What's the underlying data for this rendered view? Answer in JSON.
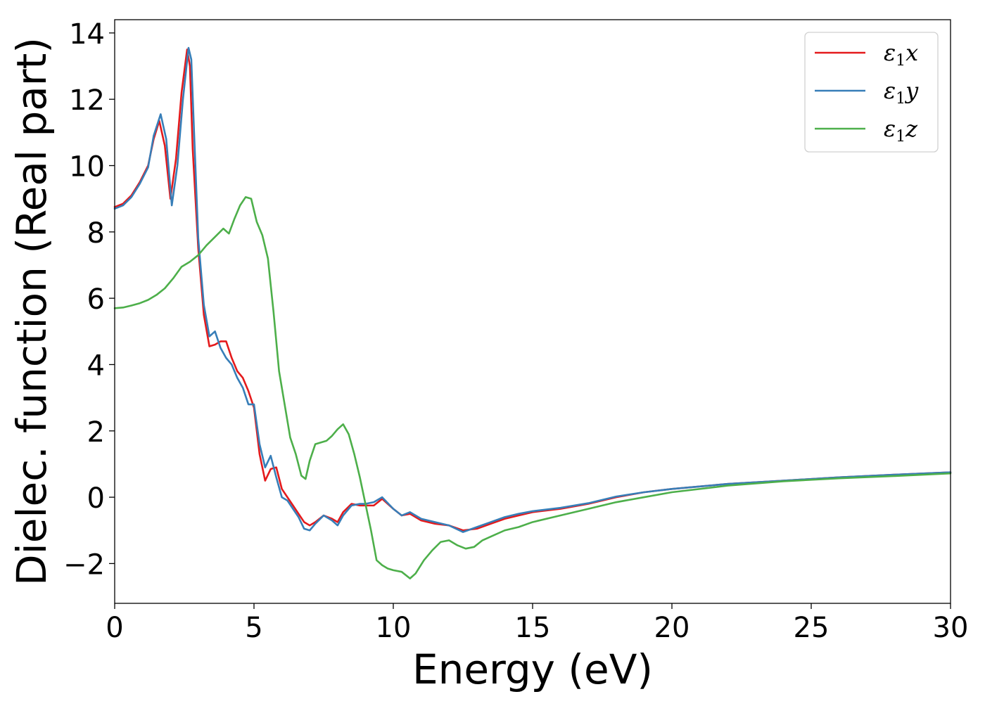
{
  "chart_data": {
    "type": "line",
    "title": "",
    "xlabel": "Energy (eV)",
    "ylabel": "Dielec. function (Real part)",
    "xlim": [
      0,
      30
    ],
    "ylim": [
      -3.2,
      14.4
    ],
    "xticks": [
      0,
      5,
      10,
      15,
      20,
      25,
      30
    ],
    "yticks": [
      -2,
      0,
      2,
      4,
      6,
      8,
      10,
      12,
      14
    ],
    "ytick_labels": [
      "−2",
      "0",
      "2",
      "4",
      "6",
      "8",
      "10",
      "12",
      "14"
    ],
    "grid": false,
    "legend_position": "top-right",
    "series": [
      {
        "name": "ε1x",
        "legend_symbol": "ε",
        "legend_sub": "1",
        "legend_tail": "x",
        "color": "#e41a1c",
        "x": [
          0,
          0.3,
          0.6,
          0.9,
          1.2,
          1.4,
          1.6,
          1.8,
          2.0,
          2.2,
          2.4,
          2.6,
          2.7,
          2.8,
          3.0,
          3.2,
          3.4,
          3.6,
          3.8,
          4.0,
          4.2,
          4.4,
          4.6,
          4.8,
          5.0,
          5.2,
          5.4,
          5.6,
          5.8,
          6.0,
          6.2,
          6.4,
          6.6,
          6.8,
          7.0,
          7.2,
          7.5,
          7.8,
          8.0,
          8.2,
          8.5,
          8.8,
          9.0,
          9.3,
          9.6,
          10.0,
          10.3,
          10.6,
          11.0,
          11.5,
          12.0,
          12.5,
          13.0,
          13.5,
          14.0,
          14.5,
          15.0,
          16.0,
          17.0,
          18.0,
          19.0,
          20.0,
          22.0,
          24.0,
          26.0,
          28.0,
          30.0
        ],
        "y": [
          8.75,
          8.85,
          9.1,
          9.5,
          10.0,
          10.8,
          11.35,
          10.6,
          9.0,
          10.2,
          12.2,
          13.5,
          13.0,
          10.5,
          7.5,
          5.5,
          4.55,
          4.6,
          4.7,
          4.7,
          4.2,
          3.8,
          3.6,
          3.2,
          2.7,
          1.3,
          0.5,
          0.85,
          0.9,
          0.25,
          0.0,
          -0.25,
          -0.5,
          -0.75,
          -0.85,
          -0.75,
          -0.55,
          -0.65,
          -0.75,
          -0.45,
          -0.2,
          -0.25,
          -0.25,
          -0.25,
          -0.05,
          -0.35,
          -0.55,
          -0.5,
          -0.7,
          -0.8,
          -0.85,
          -1.0,
          -0.95,
          -0.8,
          -0.65,
          -0.55,
          -0.45,
          -0.35,
          -0.2,
          0.0,
          0.15,
          0.25,
          0.4,
          0.5,
          0.6,
          0.68,
          0.75
        ]
      },
      {
        "name": "ε1y",
        "legend_symbol": "ε",
        "legend_sub": "1",
        "legend_tail": "y",
        "color": "#377eb8",
        "x": [
          0,
          0.3,
          0.6,
          0.9,
          1.2,
          1.4,
          1.65,
          1.85,
          2.05,
          2.25,
          2.45,
          2.65,
          2.75,
          2.85,
          3.0,
          3.2,
          3.4,
          3.6,
          3.8,
          4.0,
          4.2,
          4.4,
          4.6,
          4.8,
          5.0,
          5.2,
          5.4,
          5.6,
          5.8,
          6.0,
          6.2,
          6.4,
          6.6,
          6.8,
          7.0,
          7.2,
          7.5,
          7.8,
          8.0,
          8.2,
          8.5,
          8.8,
          9.0,
          9.3,
          9.6,
          10.0,
          10.3,
          10.6,
          11.0,
          11.5,
          12.0,
          12.5,
          13.0,
          13.5,
          14.0,
          14.5,
          15.0,
          16.0,
          17.0,
          18.0,
          19.0,
          20.0,
          22.0,
          24.0,
          26.0,
          28.0,
          30.0
        ],
        "y": [
          8.7,
          8.8,
          9.05,
          9.45,
          9.95,
          10.9,
          11.55,
          10.8,
          8.8,
          10.0,
          12.0,
          13.55,
          13.2,
          11.0,
          7.8,
          5.8,
          4.85,
          5.0,
          4.5,
          4.2,
          4.0,
          3.6,
          3.3,
          2.8,
          2.8,
          1.6,
          0.9,
          1.25,
          0.6,
          0.0,
          -0.1,
          -0.35,
          -0.6,
          -0.95,
          -1.0,
          -0.8,
          -0.55,
          -0.7,
          -0.85,
          -0.55,
          -0.25,
          -0.2,
          -0.2,
          -0.15,
          0.0,
          -0.35,
          -0.55,
          -0.45,
          -0.65,
          -0.75,
          -0.85,
          -1.05,
          -0.9,
          -0.75,
          -0.6,
          -0.5,
          -0.42,
          -0.32,
          -0.18,
          0.02,
          0.15,
          0.25,
          0.4,
          0.5,
          0.6,
          0.68,
          0.75
        ]
      },
      {
        "name": "ε1z",
        "legend_symbol": "ε",
        "legend_sub": "1",
        "legend_tail": "z",
        "color": "#4daf4a",
        "x": [
          0,
          0.3,
          0.6,
          0.9,
          1.2,
          1.5,
          1.8,
          2.1,
          2.4,
          2.7,
          3.0,
          3.3,
          3.6,
          3.9,
          4.1,
          4.3,
          4.5,
          4.7,
          4.9,
          5.1,
          5.3,
          5.5,
          5.7,
          5.9,
          6.1,
          6.3,
          6.5,
          6.7,
          6.85,
          7.0,
          7.2,
          7.4,
          7.6,
          7.8,
          8.0,
          8.2,
          8.4,
          8.6,
          8.8,
          9.0,
          9.2,
          9.4,
          9.6,
          9.8,
          10.0,
          10.3,
          10.6,
          10.8,
          11.1,
          11.4,
          11.7,
          12.0,
          12.3,
          12.6,
          12.9,
          13.2,
          13.6,
          14.0,
          14.5,
          15.0,
          16.0,
          17.0,
          18.0,
          19.0,
          20.0,
          22.0,
          24.0,
          26.0,
          28.0,
          30.0
        ],
        "y": [
          5.7,
          5.72,
          5.78,
          5.85,
          5.95,
          6.1,
          6.3,
          6.6,
          6.95,
          7.1,
          7.3,
          7.6,
          7.85,
          8.1,
          7.95,
          8.4,
          8.8,
          9.05,
          9.0,
          8.3,
          7.9,
          7.2,
          5.6,
          3.8,
          2.8,
          1.8,
          1.3,
          0.65,
          0.55,
          1.1,
          1.6,
          1.65,
          1.7,
          1.85,
          2.05,
          2.2,
          1.9,
          1.3,
          0.6,
          -0.2,
          -1.0,
          -1.9,
          -2.05,
          -2.15,
          -2.2,
          -2.25,
          -2.45,
          -2.3,
          -1.9,
          -1.6,
          -1.35,
          -1.3,
          -1.45,
          -1.55,
          -1.5,
          -1.3,
          -1.15,
          -1.0,
          -0.9,
          -0.75,
          -0.55,
          -0.35,
          -0.15,
          0.0,
          0.15,
          0.35,
          0.48,
          0.57,
          0.64,
          0.72
        ]
      }
    ]
  }
}
